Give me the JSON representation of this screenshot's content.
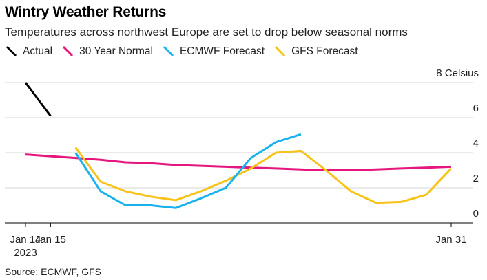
{
  "header": {
    "title": "Wintry Weather Returns",
    "subtitle": "Temperatures across northwest Europe are set to drop below seasonal norms"
  },
  "footer": {
    "source": "Source: ECMWF, GFS"
  },
  "chart_data": {
    "type": "line",
    "title": "Wintry Weather Returns",
    "subtitle": "Temperatures across northwest Europe are set to drop below seasonal norms",
    "ylabel": "Celsius",
    "ylim": [
      0,
      8
    ],
    "yticks": [
      0,
      2,
      4,
      6,
      8
    ],
    "xlim": [
      "2023-01-14",
      "2023-01-31"
    ],
    "xticks": [
      {
        "date": "2023-01-14",
        "label": "Jan 14",
        "sublabel": "2023"
      },
      {
        "date": "2023-01-15",
        "label": "Jan 15",
        "sublabel": ""
      },
      {
        "date": "2023-01-31",
        "label": "Jan 31",
        "sublabel": ""
      }
    ],
    "grid": true,
    "legend_position": "top-left",
    "series": [
      {
        "name": "Actual",
        "color": "#000000",
        "points": [
          [
            "2023-01-14 00:00",
            8.0
          ],
          [
            "2023-01-15 00:00",
            6.1
          ]
        ]
      },
      {
        "name": "30 Year Normal",
        "color": "#e5177e",
        "points": [
          [
            "2023-01-14 00:00",
            3.9
          ],
          [
            "2023-01-15 00:00",
            3.8
          ],
          [
            "2023-01-16 00:00",
            3.7
          ],
          [
            "2023-01-17 00:00",
            3.6
          ],
          [
            "2023-01-18 00:00",
            3.45
          ],
          [
            "2023-01-19 00:00",
            3.4
          ],
          [
            "2023-01-20 00:00",
            3.3
          ],
          [
            "2023-01-21 00:00",
            3.25
          ],
          [
            "2023-01-22 00:00",
            3.2
          ],
          [
            "2023-01-23 00:00",
            3.15
          ],
          [
            "2023-01-24 00:00",
            3.1
          ],
          [
            "2023-01-25 00:00",
            3.05
          ],
          [
            "2023-01-26 00:00",
            3.0
          ],
          [
            "2023-01-27 00:00",
            3.0
          ],
          [
            "2023-01-28 00:00",
            3.05
          ],
          [
            "2023-01-29 00:00",
            3.1
          ],
          [
            "2023-01-30 00:00",
            3.15
          ],
          [
            "2023-01-31 00:00",
            3.2
          ]
        ]
      },
      {
        "name": "ECMWF Forecast",
        "color": "#1ab2ec",
        "points": [
          [
            "2023-01-16 00:00",
            4.0
          ],
          [
            "2023-01-17 00:00",
            1.8
          ],
          [
            "2023-01-18 00:00",
            1.0
          ],
          [
            "2023-01-19 00:00",
            1.0
          ],
          [
            "2023-01-20 00:00",
            0.85
          ],
          [
            "2023-01-21 00:00",
            1.4
          ],
          [
            "2023-01-22 00:00",
            2.0
          ],
          [
            "2023-01-23 00:00",
            3.7
          ],
          [
            "2023-01-24 00:00",
            4.6
          ],
          [
            "2023-01-25 00:00",
            5.05
          ]
        ]
      },
      {
        "name": "GFS Forecast",
        "color": "#f7c31a",
        "points": [
          [
            "2023-01-16 00:00",
            4.3
          ],
          [
            "2023-01-17 00:00",
            2.35
          ],
          [
            "2023-01-18 00:00",
            1.8
          ],
          [
            "2023-01-19 00:00",
            1.5
          ],
          [
            "2023-01-20 00:00",
            1.3
          ],
          [
            "2023-01-21 00:00",
            1.8
          ],
          [
            "2023-01-22 00:00",
            2.4
          ],
          [
            "2023-01-23 00:00",
            3.1
          ],
          [
            "2023-01-24 00:00",
            4.0
          ],
          [
            "2023-01-25 00:00",
            4.1
          ],
          [
            "2023-01-26 00:00",
            3.0
          ],
          [
            "2023-01-27 00:00",
            1.8
          ],
          [
            "2023-01-28 00:00",
            1.15
          ],
          [
            "2023-01-29 00:00",
            1.2
          ],
          [
            "2023-01-30 00:00",
            1.6
          ],
          [
            "2023-01-31 00:00",
            3.1
          ]
        ]
      }
    ]
  }
}
